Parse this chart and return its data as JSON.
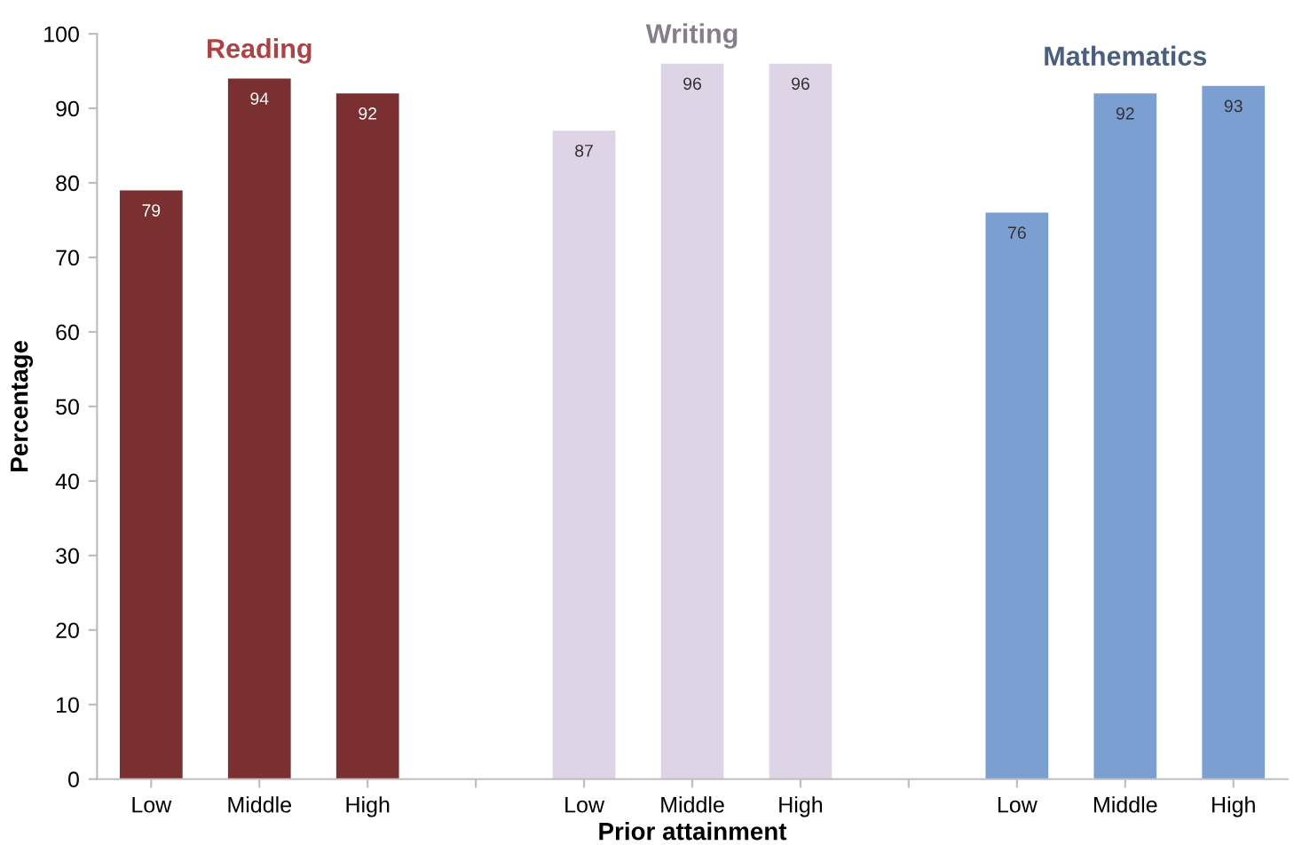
{
  "chart_data": {
    "type": "bar",
    "xlabel": "Prior attainment",
    "ylabel": "Percentage",
    "categories": [
      "Low",
      "Middle",
      "High",
      null,
      "Low",
      "Middle",
      "High",
      null,
      "Low",
      "Middle",
      "High"
    ],
    "series": [
      {
        "name": "Reading",
        "color": "#7a2f30",
        "values": [
          79,
          94,
          92,
          null,
          null,
          null,
          null,
          null,
          null,
          null,
          null
        ]
      },
      {
        "name": "Writing",
        "color": "#ddd4e6",
        "values": [
          null,
          null,
          null,
          null,
          87,
          96,
          96,
          null,
          null,
          null,
          null
        ]
      },
      {
        "name": "Mathematics",
        "color": "#7b9fd0",
        "values": [
          null,
          null,
          null,
          null,
          null,
          null,
          null,
          null,
          76,
          92,
          93
        ]
      }
    ],
    "ylim": [
      0,
      100
    ],
    "yticks": [
      0,
      10,
      20,
      30,
      40,
      50,
      60,
      70,
      80,
      90,
      100
    ],
    "data_labels": true,
    "grid": false,
    "legend": false
  }
}
